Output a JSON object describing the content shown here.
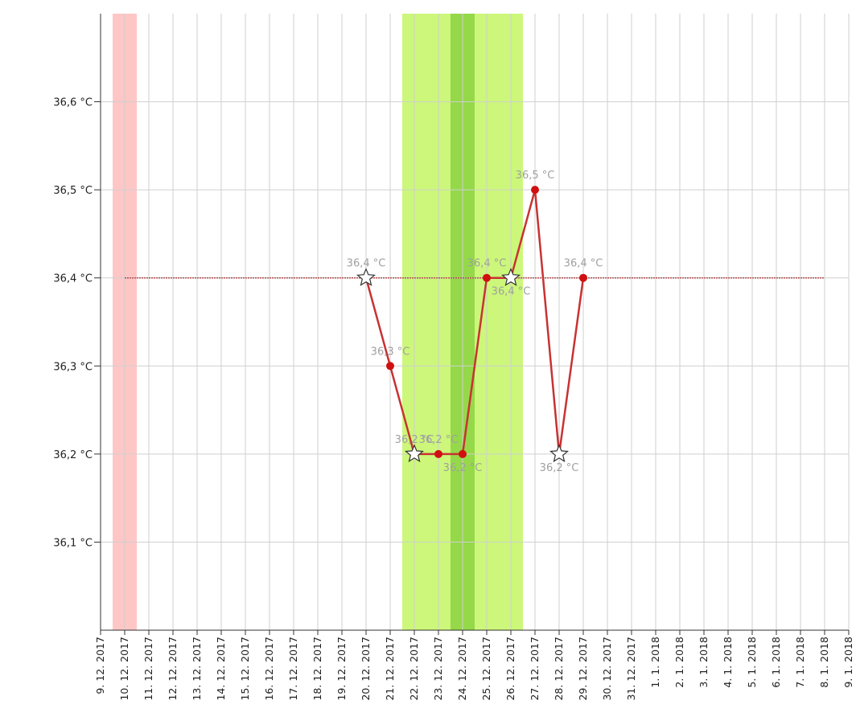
{
  "chart_data": {
    "type": "line",
    "categories": [
      "9. 12. 2017",
      "10. 12. 2017",
      "11. 12. 2017",
      "12. 12. 2017",
      "13. 12. 2017",
      "14. 12. 2017",
      "15. 12. 2017",
      "16. 12. 2017",
      "17. 12. 2017",
      "18. 12. 2017",
      "19. 12. 2017",
      "20. 12. 2017",
      "21. 12. 2017",
      "22. 12. 2017",
      "23. 12. 2017",
      "24. 12. 2017",
      "25. 12. 2017",
      "26. 12. 2017",
      "27. 12. 2017",
      "28. 12. 2017",
      "29. 12. 2017",
      "30. 12. 2017",
      "31. 12. 2017",
      "1. 1. 2018",
      "2. 1. 2018",
      "3. 1. 2018",
      "4. 1. 2018",
      "5. 1. 2018",
      "6. 1. 2018",
      "7. 1. 2018",
      "8. 1. 2018",
      "9. 1. 2018"
    ],
    "series": [
      {
        "color": "#c83232",
        "values": [
          null,
          null,
          null,
          null,
          null,
          null,
          null,
          null,
          null,
          null,
          null,
          36.4,
          36.3,
          36.2,
          36.2,
          36.2,
          36.4,
          36.4,
          36.5,
          36.2,
          36.4,
          null,
          null,
          null,
          null,
          null,
          null,
          null,
          null,
          null,
          null,
          null
        ],
        "value_labels": [
          null,
          null,
          null,
          null,
          null,
          null,
          null,
          null,
          null,
          null,
          null,
          "36,4 °C",
          "36,3 °C",
          "36,2 °C",
          "36,2 °C",
          "36,2 °C",
          "36,4 °C",
          "36,4 °C",
          "36,5 °C",
          "36,2 °C",
          "36,4 °C",
          null,
          null,
          null,
          null,
          null,
          null,
          null,
          null,
          null,
          null,
          null
        ],
        "markers": [
          null,
          null,
          null,
          null,
          null,
          null,
          null,
          null,
          null,
          null,
          null,
          "star",
          "dot",
          "star",
          "dot",
          "dot",
          "dot",
          "star",
          "dot",
          "star",
          "dot",
          null,
          null,
          null,
          null,
          null,
          null,
          null,
          null,
          null,
          null,
          null
        ]
      },
      {
        "color": "#b05050",
        "dashed": true,
        "values": [
          null,
          36.4,
          36.4,
          36.4,
          36.4,
          36.4,
          36.4,
          36.4,
          36.4,
          36.4,
          36.4,
          36.4,
          36.4,
          36.4,
          36.4,
          36.4,
          36.4,
          36.4,
          36.4,
          36.4,
          36.4,
          36.4,
          36.4,
          36.4,
          36.4,
          36.4,
          36.4,
          36.4,
          36.4,
          36.4,
          36.4,
          null
        ]
      }
    ],
    "highlights": [
      {
        "start": 1,
        "end": 1,
        "color": "#ffc6c6"
      },
      {
        "start": 13,
        "end": 17,
        "color": "#ccf77a"
      },
      {
        "start": 15,
        "end": 15,
        "color": "#95d84a"
      }
    ],
    "ylim": [
      36.0,
      36.7
    ],
    "yticks": [
      {
        "value": 36.1,
        "label": "36,1 °C"
      },
      {
        "value": 36.2,
        "label": "36,2 °C"
      },
      {
        "value": 36.3,
        "label": "36,3 °C"
      },
      {
        "value": 36.4,
        "label": "36,4 °C"
      },
      {
        "value": 36.5,
        "label": "36,5 °C"
      },
      {
        "value": 36.6,
        "label": "36,6 °C"
      }
    ],
    "grid": true
  }
}
